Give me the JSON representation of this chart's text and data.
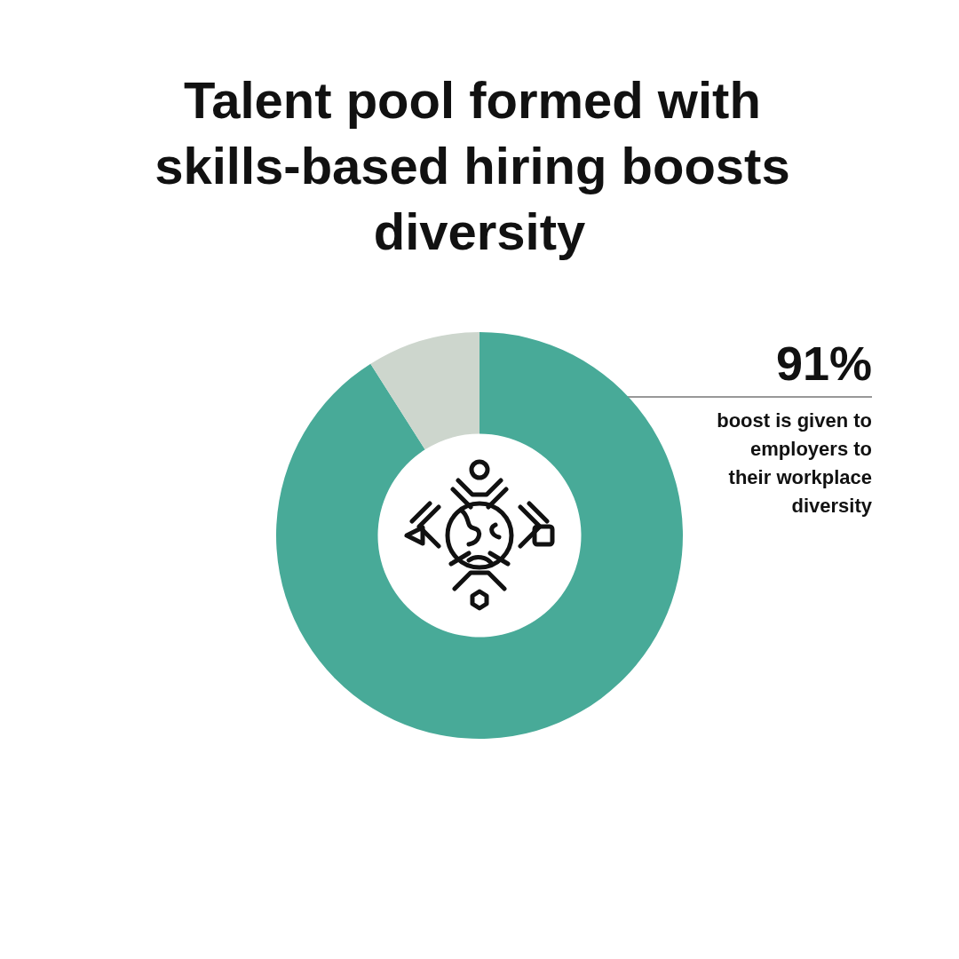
{
  "chart_data": {
    "type": "donut",
    "title": "Talent pool formed with skills-based hiring boosts diversity",
    "categories": [
      null,
      null
    ],
    "values": [
      91,
      9
    ],
    "colors": [
      "#48aa98",
      "#cdd6cd"
    ],
    "value_labels": [
      "91%",
      null
    ],
    "annotations": [
      "boost is given to employers to their workplace diversity"
    ]
  }
}
